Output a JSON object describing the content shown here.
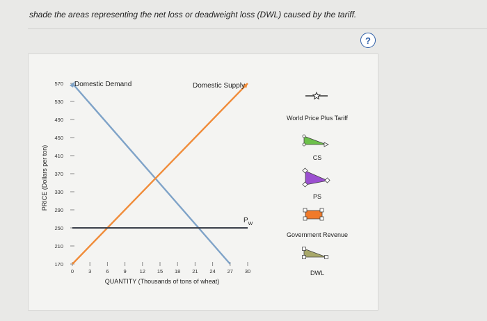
{
  "instruction": "shade the areas representing the net loss or deadweight loss (DWL) caused by the tariff.",
  "help_label": "?",
  "chart_data": {
    "type": "line",
    "xlabel": "QUANTITY (Thousands of tons of wheat)",
    "ylabel": "PRICE (Dollars per ton)",
    "xlim": [
      0,
      30
    ],
    "ylim": [
      170,
      570
    ],
    "x_ticks": [
      0,
      3,
      6,
      9,
      12,
      15,
      18,
      21,
      24,
      27,
      30
    ],
    "y_ticks": [
      570,
      530,
      490,
      450,
      410,
      370,
      330,
      290,
      250,
      210,
      170
    ],
    "series": [
      {
        "name": "Domestic Demand",
        "color": "#7fa3c8",
        "x": [
          0,
          27
        ],
        "y": [
          570,
          170
        ]
      },
      {
        "name": "Domestic Supply",
        "color": "#f08c3a",
        "x": [
          0,
          30
        ],
        "y": [
          170,
          570
        ]
      },
      {
        "name": "Pw",
        "color": "#3a3f4a",
        "x": [
          0,
          30
        ],
        "y": [
          250,
          250
        ]
      }
    ],
    "pw_label": "P",
    "pw_subscript": "W"
  },
  "legend": {
    "world_price_tariff": "World Price Plus Tariff",
    "cs": "CS",
    "ps": "PS",
    "gov_revenue": "Government Revenue",
    "dwl": "DWL"
  },
  "colors": {
    "cs": "#6cc04a",
    "ps": "#9b4fd0",
    "gov_revenue": "#f07a2a",
    "dwl": "#a8a86a"
  }
}
